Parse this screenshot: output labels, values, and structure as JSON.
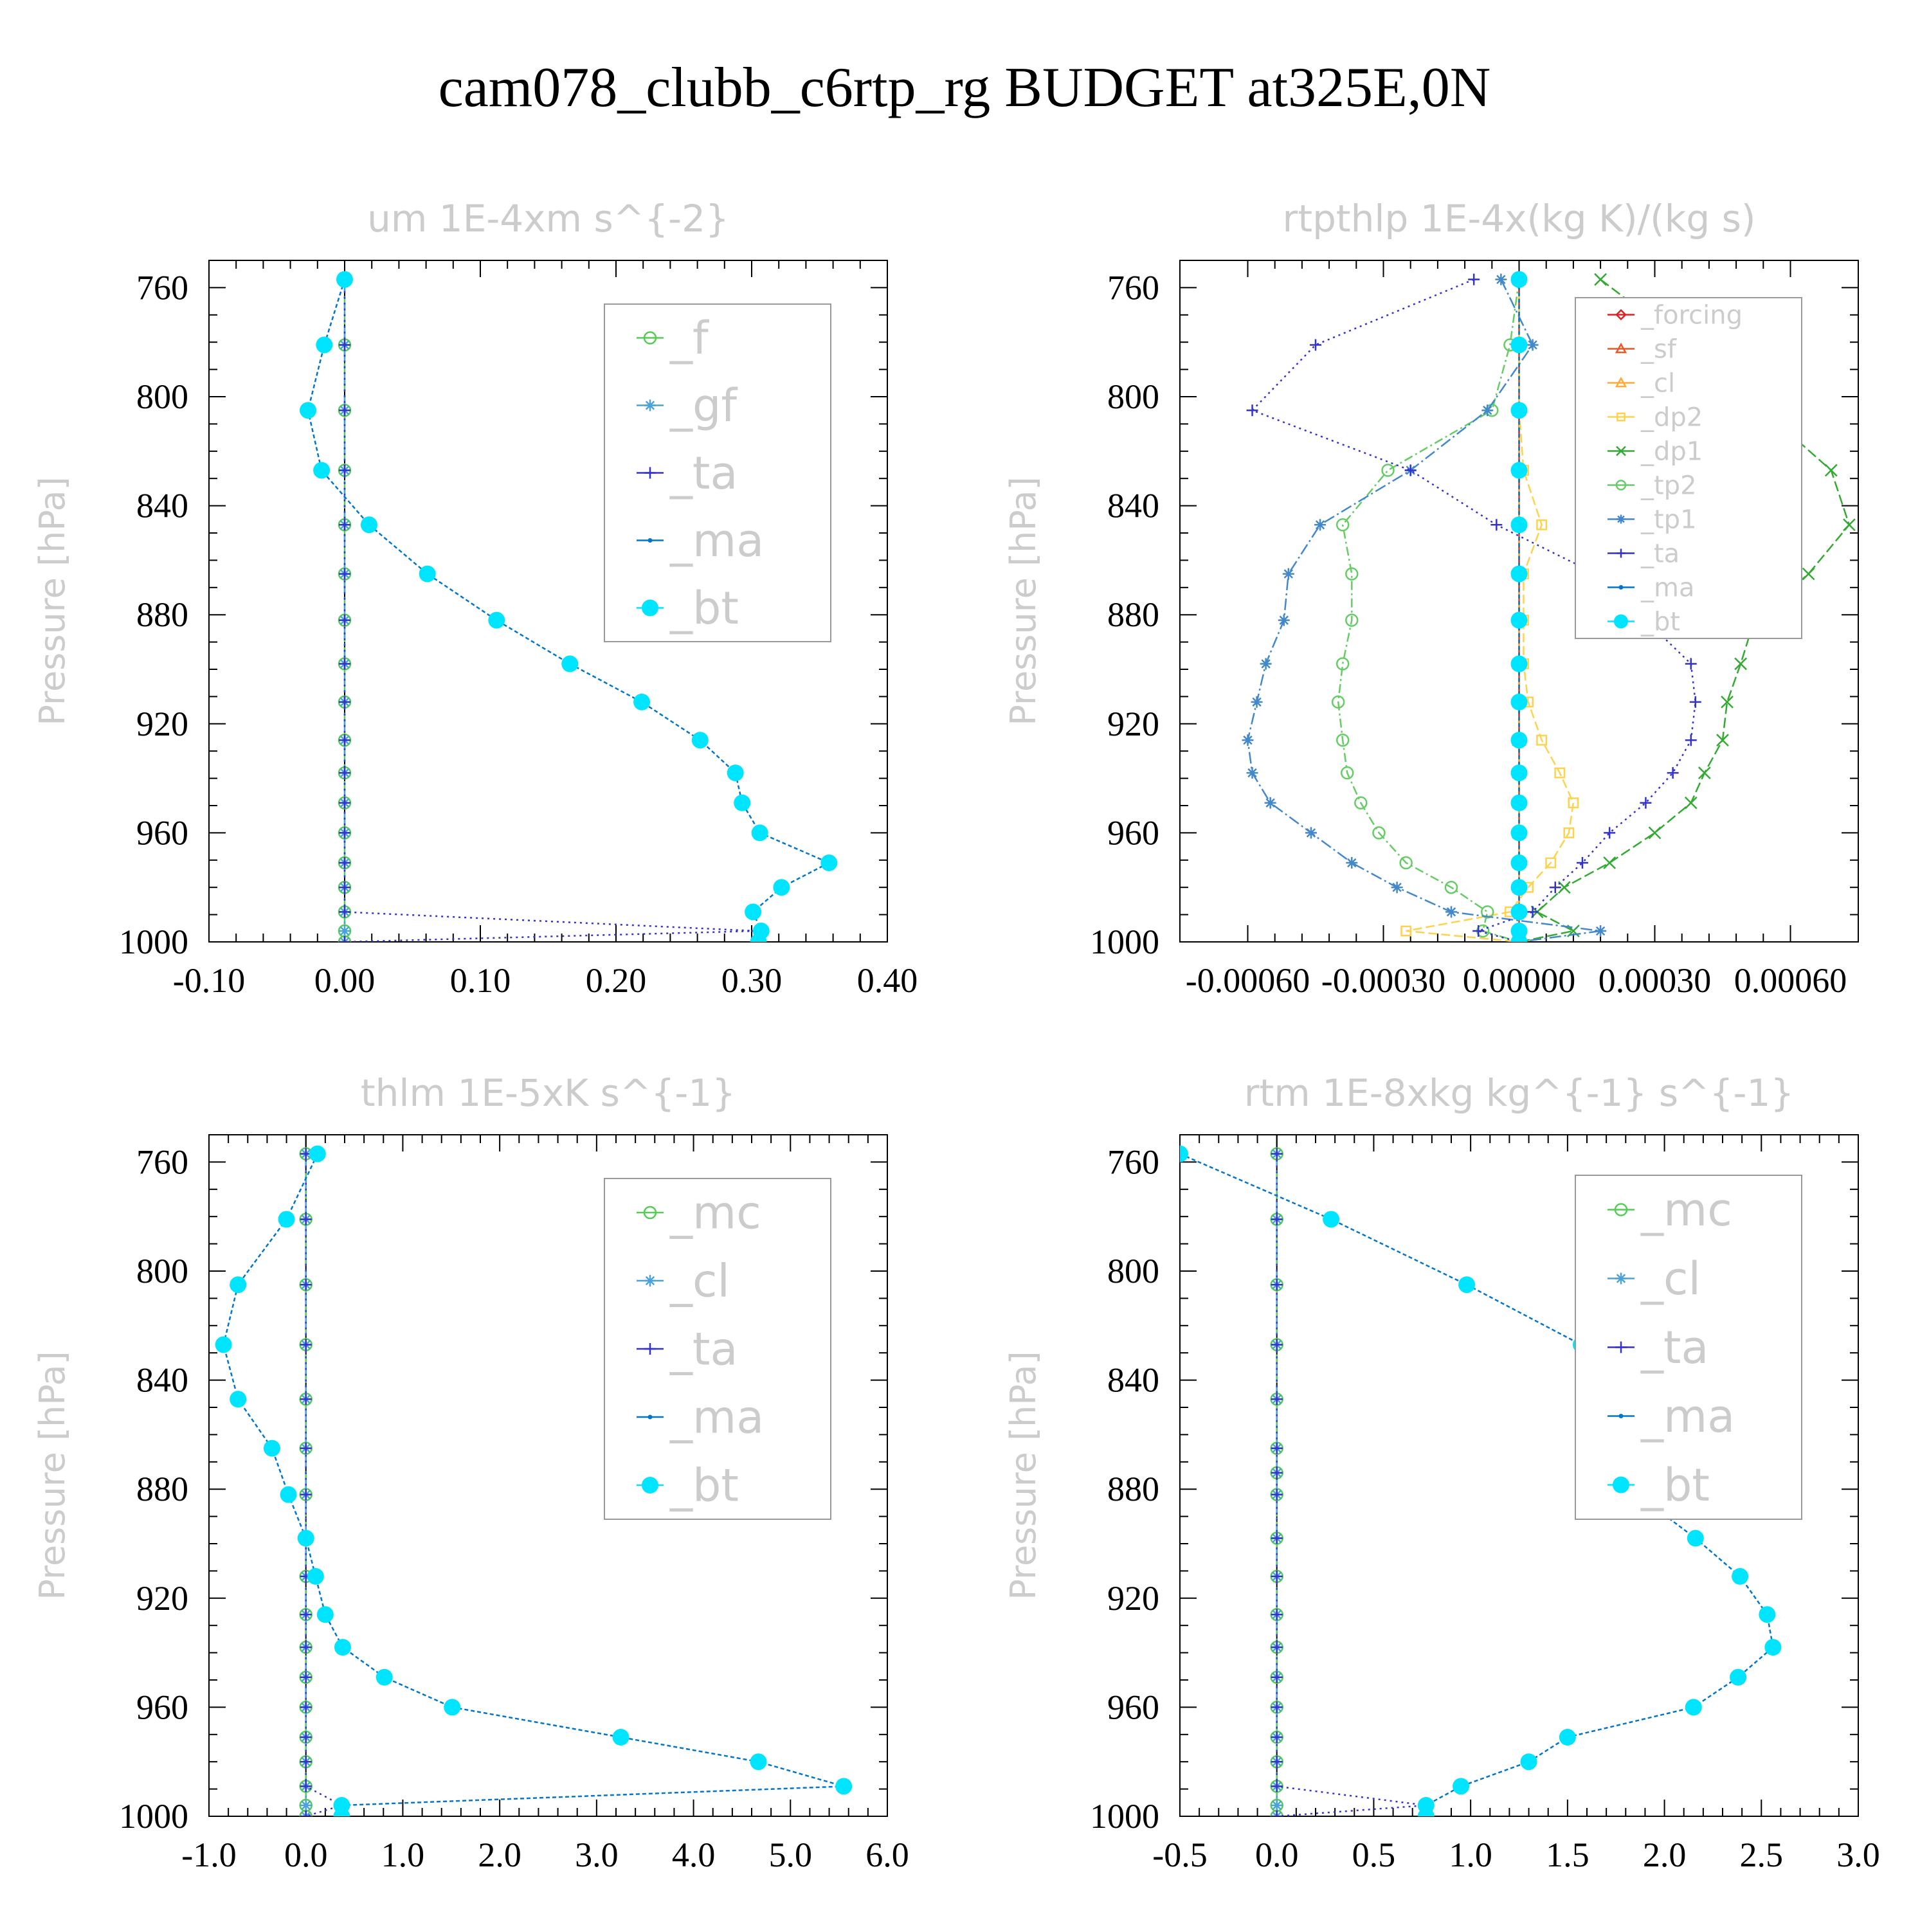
{
  "page": {
    "title": "cam078_clubb_c6rtp_rg  BUDGET at325E,0N"
  },
  "chart_data": [
    {
      "type": "line",
      "title": "um  1E-4xm s^{-2}",
      "ylabel": "Pressure [hPa]",
      "xlabel": "",
      "xlim": [
        -0.1,
        0.4
      ],
      "ylim": [
        1000,
        750
      ],
      "xticks": [
        "-0.10",
        "0.00",
        "0.10",
        "0.20",
        "0.30",
        "0.40"
      ],
      "yticks": [
        "760",
        "800",
        "840",
        "880",
        "920",
        "960",
        "1000"
      ],
      "legend": {
        "position": "top-right",
        "font_size": 70
      },
      "levels": [
        757,
        781,
        805,
        827,
        847,
        865,
        882,
        898,
        912,
        926,
        938,
        949,
        960,
        971,
        980,
        989,
        996,
        1000
      ],
      "series": [
        {
          "name": "_f",
          "color": "#55cc55",
          "marker": "circle",
          "dash": "18,8",
          "values": [
            0,
            0,
            0,
            0,
            0,
            0,
            0,
            0,
            0,
            0,
            0,
            0,
            0,
            0,
            0,
            0,
            0,
            0
          ]
        },
        {
          "name": "_gf",
          "color": "#4aa3d8",
          "marker": "asterisk",
          "dash": "20,6,4,6",
          "values": [
            0,
            0,
            0,
            0,
            0,
            0,
            0,
            0,
            0,
            0,
            0,
            0,
            0,
            0,
            0,
            0,
            0,
            0
          ]
        },
        {
          "name": "_ta",
          "color": "#3333cc",
          "marker": "plus",
          "dash": "3,6",
          "values": [
            0,
            0,
            0,
            0,
            0,
            0,
            0,
            0,
            0,
            0,
            0,
            0,
            0,
            0,
            0,
            0,
            0.304,
            0
          ]
        },
        {
          "name": "_ma",
          "color": "#0077cc",
          "marker": "dot",
          "dash": "6,4",
          "values": [
            0,
            -0.015,
            -0.027,
            -0.017,
            0.018,
            0.061,
            0.112,
            0.166,
            0.219,
            0.262,
            0.288,
            0.293,
            0.306,
            0.357,
            0.322,
            0.301,
            0.307,
            0.305
          ]
        },
        {
          "name": "_bt",
          "color": "#00e5ff",
          "marker": "filled",
          "dash": "none",
          "values": [
            0,
            -0.015,
            -0.027,
            -0.017,
            0.018,
            0.061,
            0.112,
            0.166,
            0.219,
            0.262,
            0.288,
            0.293,
            0.306,
            0.357,
            0.322,
            0.301,
            0.307,
            0.305
          ]
        }
      ]
    },
    {
      "type": "line",
      "title": "rtpthlp  1E-4x(kg K)/(kg s)",
      "ylabel": "Pressure [hPa]",
      "xlabel": "",
      "xlim": [
        -0.00075,
        0.00075
      ],
      "ylim": [
        1000,
        750
      ],
      "xticks": [
        "-0.00060",
        "-0.00030",
        "0.00000",
        "0.00030",
        "0.00060"
      ],
      "yticks": [
        "760",
        "800",
        "840",
        "880",
        "920",
        "960",
        "1000"
      ],
      "legend": {
        "position": "top-right",
        "font_size": 40
      },
      "levels": [
        757,
        781,
        805,
        827,
        847,
        865,
        882,
        898,
        912,
        926,
        938,
        949,
        960,
        971,
        980,
        989,
        996,
        1000
      ],
      "series": [
        {
          "name": "_forcing",
          "color": "#dd2222",
          "marker": "diamond",
          "dash": "none",
          "values": [
            0,
            0,
            0,
            0,
            0,
            0,
            0,
            0,
            0,
            0,
            0,
            0,
            0,
            0,
            0,
            0,
            0,
            0
          ]
        },
        {
          "name": "_sf",
          "color": "#ee5522",
          "marker": "triangle",
          "dash": "16,6",
          "values": [
            0,
            0,
            0,
            0,
            0,
            0,
            0,
            0,
            0,
            0,
            0,
            0,
            0,
            0,
            0,
            0,
            0,
            0
          ]
        },
        {
          "name": "_cl",
          "color": "#ffaa33",
          "marker": "triangle",
          "dash": "14,6",
          "values": [
            0,
            0,
            0,
            0,
            0,
            0,
            0,
            0,
            0,
            0,
            0,
            0,
            0,
            0,
            0,
            0,
            0,
            0
          ]
        },
        {
          "name": "_dp2",
          "color": "#ffd24d",
          "marker": "square",
          "dash": "14,6",
          "values": [
            0,
            0,
            0,
            1e-05,
            5e-05,
            1e-05,
            1e-05,
            1e-05,
            2e-05,
            5e-05,
            9e-05,
            0.00012,
            0.00011,
            7e-05,
            2e-05,
            -2e-05,
            -0.00025,
            0
          ]
        },
        {
          "name": "_dp1",
          "color": "#33aa33",
          "marker": "x",
          "dash": "16,6",
          "values": [
            0.00018,
            0.00037,
            0.00054,
            0.00069,
            0.00073,
            0.00064,
            0.00052,
            0.00049,
            0.00046,
            0.00045,
            0.00041,
            0.00038,
            0.0003,
            0.0002,
            0.0001,
            4e-05,
            0.00012,
            0
          ]
        },
        {
          "name": "_tp2",
          "color": "#66cc66",
          "marker": "circle",
          "dash": "14,5,3,5",
          "values": [
            0,
            -2e-05,
            -6e-05,
            -0.00029,
            -0.00039,
            -0.00037,
            -0.00037,
            -0.00039,
            -0.0004,
            -0.00039,
            -0.00038,
            -0.00035,
            -0.00031,
            -0.00025,
            -0.00015,
            -7e-05,
            -8e-05,
            0
          ]
        },
        {
          "name": "_tp1",
          "color": "#4488cc",
          "marker": "asterisk",
          "dash": "18,5,3,5",
          "values": [
            -4e-05,
            3e-05,
            -7e-05,
            -0.00024,
            -0.00044,
            -0.00051,
            -0.00052,
            -0.00056,
            -0.00058,
            -0.0006,
            -0.00059,
            -0.00055,
            -0.00046,
            -0.00037,
            -0.00027,
            -0.00015,
            0.00018,
            0
          ]
        },
        {
          "name": "_ta",
          "color": "#3333cc",
          "marker": "plus",
          "dash": "3,6",
          "values": [
            -0.0001,
            -0.00045,
            -0.00059,
            -0.00024,
            -5e-05,
            0.00017,
            0.00028,
            0.00038,
            0.00039,
            0.00038,
            0.00034,
            0.00028,
            0.0002,
            0.00014,
            8e-05,
            3e-05,
            -9e-05,
            0
          ]
        },
        {
          "name": "_ma",
          "color": "#0077cc",
          "marker": "dot",
          "dash": "6,4",
          "values": [
            0,
            0,
            0,
            0,
            0,
            0,
            0,
            0,
            0,
            0,
            0,
            0,
            0,
            0,
            0,
            0,
            0,
            0
          ]
        },
        {
          "name": "_bt",
          "color": "#00e5ff",
          "marker": "filled",
          "dash": "none",
          "values": [
            0,
            0,
            0,
            0,
            0,
            0,
            0,
            0,
            0,
            0,
            0,
            0,
            0,
            0,
            0,
            0,
            0,
            0
          ]
        }
      ]
    },
    {
      "type": "line",
      "title": "thlm  1E-5xK s^{-1}",
      "ylabel": "Pressure [hPa]",
      "xlabel": "",
      "xlim": [
        -1.0,
        6.0
      ],
      "ylim": [
        1000,
        750
      ],
      "xticks": [
        "-1.0",
        "0.0",
        "1.0",
        "2.0",
        "3.0",
        "4.0",
        "5.0",
        "6.0"
      ],
      "yticks": [
        "760",
        "800",
        "840",
        "880",
        "920",
        "960",
        "1000"
      ],
      "legend": {
        "position": "top-right",
        "font_size": 70
      },
      "levels": [
        757,
        781,
        805,
        827,
        847,
        865,
        882,
        898,
        912,
        926,
        938,
        949,
        960,
        971,
        980,
        989,
        996,
        1000
      ],
      "series": [
        {
          "name": "_mc",
          "color": "#55cc55",
          "marker": "circle",
          "dash": "18,8",
          "values": [
            0,
            0,
            0,
            0,
            0,
            0,
            0,
            0,
            0,
            0,
            0,
            0,
            0,
            0,
            0,
            0,
            0,
            0
          ]
        },
        {
          "name": "_cl",
          "color": "#4aa3d8",
          "marker": "asterisk",
          "dash": "20,6,4,6",
          "values": [
            0,
            0,
            0,
            0,
            0,
            0,
            0,
            0,
            0,
            0,
            0,
            0,
            0,
            0,
            0,
            0,
            0,
            0
          ]
        },
        {
          "name": "_ta",
          "color": "#3333cc",
          "marker": "plus",
          "dash": "3,6",
          "values": [
            0,
            0,
            0,
            0,
            0,
            0,
            0,
            0,
            0,
            0,
            0,
            0,
            0,
            0,
            0,
            0,
            0.37,
            0
          ]
        },
        {
          "name": "_ma",
          "color": "#0077cc",
          "marker": "dot",
          "dash": "6,4",
          "values": [
            0.12,
            -0.2,
            -0.7,
            -0.85,
            -0.7,
            -0.35,
            -0.18,
            0,
            0.1,
            0.2,
            0.38,
            0.81,
            1.51,
            3.25,
            4.67,
            5.55,
            0.37,
            0.37
          ]
        },
        {
          "name": "_bt",
          "color": "#00e5ff",
          "marker": "filled",
          "dash": "none",
          "values": [
            0.12,
            -0.2,
            -0.7,
            -0.85,
            -0.7,
            -0.35,
            -0.18,
            0,
            0.1,
            0.2,
            0.38,
            0.81,
            1.51,
            3.25,
            4.67,
            5.55,
            0.37,
            0.37
          ]
        }
      ]
    },
    {
      "type": "line",
      "title": "rtm  1E-8xkg kg^{-1} s^{-1}",
      "ylabel": "Pressure [hPa]",
      "xlabel": "",
      "xlim": [
        -0.5,
        3.0
      ],
      "ylim": [
        1000,
        750
      ],
      "xticks": [
        "-0.5",
        "0.0",
        "0.5",
        "1.0",
        "1.5",
        "2.0",
        "2.5",
        "3.0"
      ],
      "yticks": [
        "760",
        "800",
        "840",
        "880",
        "920",
        "960",
        "1000"
      ],
      "legend": {
        "position": "top-right",
        "font_size": 70
      },
      "levels": [
        757,
        781,
        805,
        827,
        847,
        865,
        874,
        882,
        898,
        912,
        926,
        938,
        949,
        960,
        971,
        980,
        989,
        996,
        1000
      ],
      "series": [
        {
          "name": "_mc",
          "color": "#55cc55",
          "marker": "circle",
          "dash": "18,8",
          "values": [
            0,
            0,
            0,
            0,
            0,
            0,
            0,
            0,
            0,
            0,
            0,
            0,
            0,
            0,
            0,
            0,
            0,
            0,
            0
          ]
        },
        {
          "name": "_cl",
          "color": "#4aa3d8",
          "marker": "asterisk",
          "dash": "20,6,4,6",
          "values": [
            0,
            0,
            0,
            0,
            0,
            0,
            0,
            0,
            0,
            0,
            0,
            0,
            0,
            0,
            0,
            0,
            0,
            0,
            0
          ]
        },
        {
          "name": "_ta",
          "color": "#3333cc",
          "marker": "plus",
          "dash": "3,6",
          "values": [
            0,
            0,
            0,
            0,
            0,
            0,
            0,
            0,
            0,
            0,
            0,
            0,
            0,
            0,
            0,
            0,
            0,
            0.77,
            0
          ]
        },
        {
          "name": "_ma",
          "color": "#0077cc",
          "marker": "dot",
          "dash": "6,4",
          "values": [
            -0.5,
            0.28,
            0.98,
            1.57,
            1.68,
            1.65,
            1.82,
            1.86,
            2.16,
            2.39,
            2.53,
            2.56,
            2.38,
            2.15,
            1.5,
            1.3,
            0.95,
            0.77,
            0.77
          ]
        },
        {
          "name": "_bt",
          "color": "#00e5ff",
          "marker": "filled",
          "dash": "none",
          "values": [
            -0.5,
            0.28,
            0.98,
            1.57,
            1.68,
            1.65,
            1.82,
            1.86,
            2.16,
            2.39,
            2.53,
            2.56,
            2.38,
            2.15,
            1.5,
            1.3,
            0.95,
            0.77,
            0.77
          ]
        }
      ]
    }
  ]
}
